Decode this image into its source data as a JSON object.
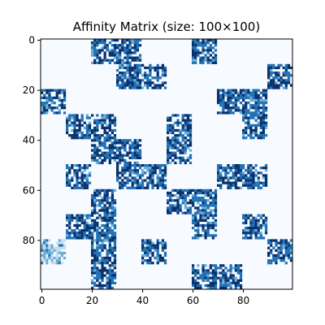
{
  "chart_data": {
    "type": "heatmap",
    "title": "Affinity Matrix (size: 100×100)",
    "xlabel": "",
    "ylabel": "",
    "size": 100,
    "xlim": [
      0,
      100
    ],
    "ylim": [
      0,
      100
    ],
    "y_axis_inverted": true,
    "x_ticks": [
      0,
      20,
      40,
      60,
      80
    ],
    "y_ticks": [
      0,
      20,
      40,
      60,
      80
    ],
    "colormap": "Blues",
    "background_color": "#f7fbff",
    "colors": [
      "#c6dbef",
      "#6baed6",
      "#2171b5",
      "#08306b"
    ],
    "grid": false,
    "legend": "none",
    "block_edges": [
      0,
      10,
      20,
      30,
      40,
      50,
      60,
      70,
      80,
      90,
      100
    ],
    "block_pattern": [
      "0011001000",
      "0001100001",
      "1000000110",
      "0110010010",
      "0011010000",
      "0101100110",
      "0010011000",
      "0110001010",
      "1010100001",
      "0010001100"
    ],
    "lighter_blocks": [
      [
        0,
        8
      ],
      [
        8,
        0
      ]
    ]
  }
}
